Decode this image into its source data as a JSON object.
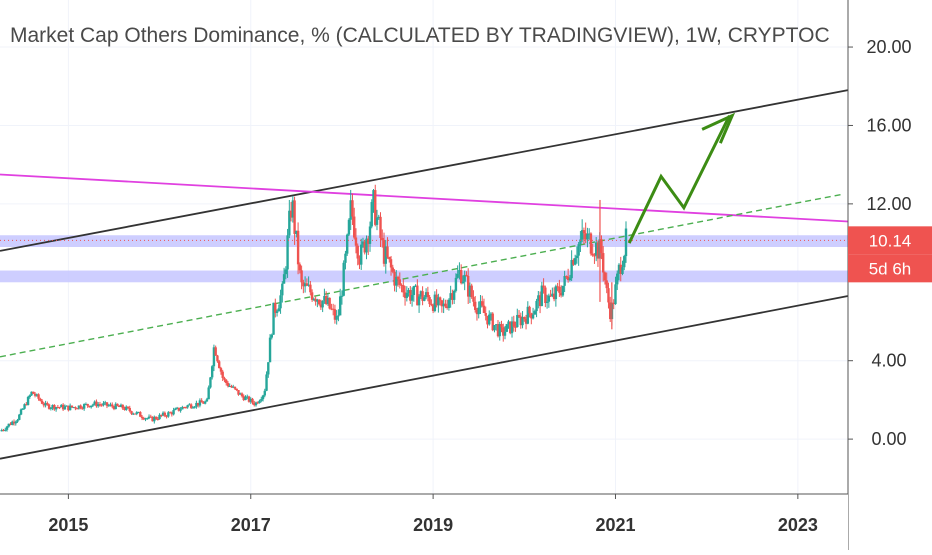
{
  "chart_data": {
    "type": "candlestick",
    "title": "Market Cap Others Dominance, % (CALCULATED BY TRADINGVIEW), 1W, CRYPTOC",
    "xlabel": "",
    "ylabel": "",
    "x_range": [
      2014.25,
      2023.55
    ],
    "ylim": [
      -2.8,
      22.4
    ],
    "x_ticks": [
      {
        "value": 2015,
        "label": "2015"
      },
      {
        "value": 2017,
        "label": "2017"
      },
      {
        "value": 2019,
        "label": "2019"
      },
      {
        "value": 2021,
        "label": "2021"
      },
      {
        "value": 2023,
        "label": "2023"
      }
    ],
    "y_ticks": [
      {
        "value": 20,
        "label": "20.00"
      },
      {
        "value": 16,
        "label": "16.00"
      },
      {
        "value": 12,
        "label": "12.00"
      },
      {
        "value": 4,
        "label": "4.00"
      },
      {
        "value": 0,
        "label": "0.00"
      }
    ],
    "grid": true,
    "up_color": "#26a69a",
    "down_color": "#ef5350",
    "price_path": [
      [
        2014.25,
        0.4
      ],
      [
        2014.45,
        1.1
      ],
      [
        2014.6,
        2.4
      ],
      [
        2014.75,
        1.7
      ],
      [
        2015.0,
        1.6
      ],
      [
        2015.3,
        1.8
      ],
      [
        2015.6,
        1.6
      ],
      [
        2015.9,
        1.0
      ],
      [
        2016.1,
        1.3
      ],
      [
        2016.3,
        1.7
      ],
      [
        2016.52,
        1.9
      ],
      [
        2016.6,
        4.8
      ],
      [
        2016.7,
        3.0
      ],
      [
        2016.9,
        2.2
      ],
      [
        2017.05,
        1.8
      ],
      [
        2017.15,
        2.4
      ],
      [
        2017.25,
        6.5
      ],
      [
        2017.35,
        7.5
      ],
      [
        2017.45,
        12.2
      ],
      [
        2017.55,
        7.8
      ],
      [
        2017.7,
        7.4
      ],
      [
        2017.85,
        6.8
      ],
      [
        2017.95,
        6.0
      ],
      [
        2018.05,
        9.5
      ],
      [
        2018.1,
        11.8
      ],
      [
        2018.2,
        9.2
      ],
      [
        2018.3,
        10.9
      ],
      [
        2018.35,
        12.0
      ],
      [
        2018.45,
        9.6
      ],
      [
        2018.6,
        8.0
      ],
      [
        2018.75,
        7.4
      ],
      [
        2018.95,
        7.2
      ],
      [
        2019.1,
        6.6
      ],
      [
        2019.2,
        7.5
      ],
      [
        2019.3,
        8.6
      ],
      [
        2019.45,
        7.0
      ],
      [
        2019.6,
        6.2
      ],
      [
        2019.75,
        5.4
      ],
      [
        2019.9,
        5.9
      ],
      [
        2020.1,
        6.6
      ],
      [
        2020.2,
        7.4
      ],
      [
        2020.3,
        7.1
      ],
      [
        2020.45,
        8.0
      ],
      [
        2020.55,
        9.6
      ],
      [
        2020.65,
        10.3
      ],
      [
        2020.75,
        10.0
      ],
      [
        2020.85,
        9.5
      ],
      [
        2020.9,
        7.5
      ],
      [
        2020.95,
        6.4
      ],
      [
        2021.0,
        7.6
      ],
      [
        2021.05,
        8.9
      ],
      [
        2021.12,
        10.14
      ]
    ],
    "volatility_spikes": [
      {
        "x": 2020.83,
        "high": 12.2,
        "low": 7.0
      },
      {
        "x": 2020.96,
        "high": 8.0,
        "low": 5.6
      }
    ],
    "lines": [
      {
        "name": "channel-upper",
        "color": "#333333",
        "style": "solid",
        "points": [
          [
            2014.25,
            9.6
          ],
          [
            2023.55,
            17.8
          ]
        ]
      },
      {
        "name": "channel-lower",
        "color": "#333333",
        "style": "solid",
        "points": [
          [
            2014.25,
            -1.0
          ],
          [
            2023.55,
            7.3
          ]
        ]
      },
      {
        "name": "resistance",
        "color": "#e040e0",
        "style": "solid",
        "points": [
          [
            2014.25,
            13.5
          ],
          [
            2023.55,
            11.1
          ]
        ]
      },
      {
        "name": "trend-dashed",
        "color": "#4caf50",
        "style": "dashed",
        "points": [
          [
            2014.25,
            4.2
          ],
          [
            2023.5,
            12.5
          ]
        ]
      }
    ],
    "projection": {
      "color": "#3c8c14",
      "points": [
        [
          2021.15,
          10.0
        ],
        [
          2021.5,
          13.4
        ],
        [
          2021.75,
          11.8
        ],
        [
          2022.25,
          16.5
        ]
      ],
      "arrowhead": [
        [
          2021.95,
          15.8
        ],
        [
          2022.28,
          16.5
        ],
        [
          2022.15,
          15.1
        ]
      ]
    },
    "horizontal_bands": [
      {
        "y_from": 9.8,
        "y_to": 10.4,
        "color": "#c5c5ff"
      },
      {
        "y_from": 8.0,
        "y_to": 8.6,
        "color": "#c5c5ff"
      }
    ],
    "price_marker": {
      "value": 10.14,
      "label": "10.14",
      "color": "#ef5350"
    },
    "countdown_label": {
      "text": "5d 6h",
      "color": "#ef5350"
    }
  }
}
